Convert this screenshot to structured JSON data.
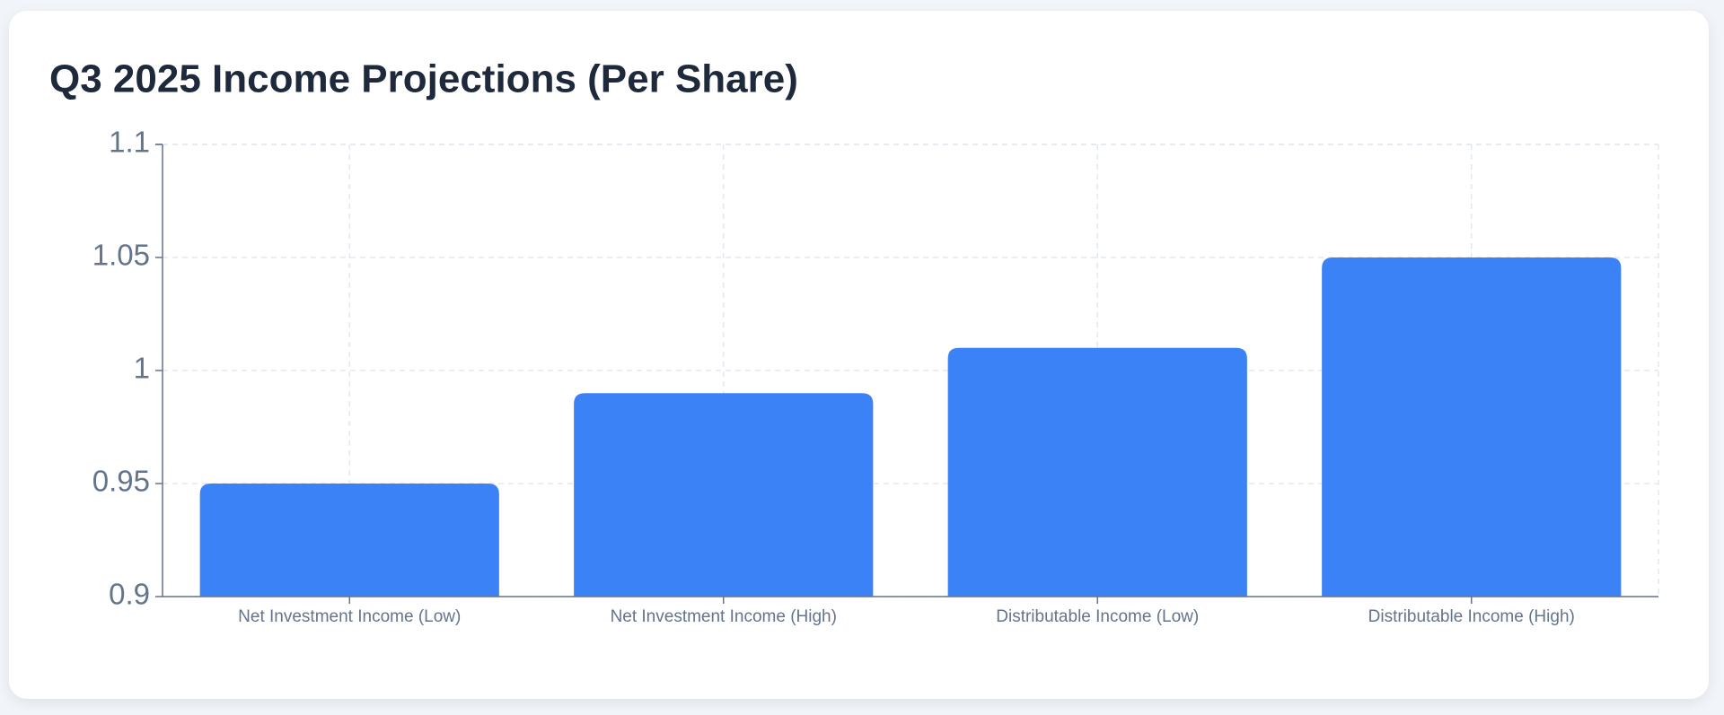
{
  "chart_data": {
    "type": "bar",
    "title": "Q3 2025 Income Projections (Per Share)",
    "categories": [
      "Net Investment Income (Low)",
      "Net Investment Income (High)",
      "Distributable Income (Low)",
      "Distributable Income (High)"
    ],
    "values": [
      0.95,
      0.99,
      1.01,
      1.05
    ],
    "color": "#3b82f6",
    "ylim": [
      0.9,
      1.1
    ],
    "yticks": [
      0.9,
      0.95,
      1,
      1.05,
      1.1
    ],
    "grid": true
  }
}
